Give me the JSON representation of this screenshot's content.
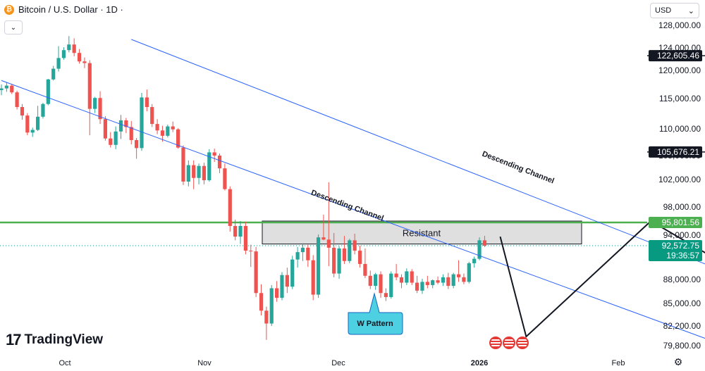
{
  "header": {
    "title": "Bitcoin / U.S. Dollar · 1D ·",
    "collapse_icon": "chevron-down-icon",
    "currency": "USD",
    "logo": "TradingView"
  },
  "colors": {
    "up": "#26a69a",
    "down": "#ef5350",
    "channel": "#2962ff",
    "support": "#4caf50",
    "zone_fill": "#d9d9d9",
    "wbadge": "#4dd0e1",
    "price_tag": "#089981"
  },
  "chart_data": {
    "type": "candlestick",
    "title": "Bitcoin / U.S. Dollar · 1D ·",
    "ylim": [
      79000,
      129000
    ],
    "y_ticks": [
      "128,000.00",
      "124,000.00",
      "120,000.00",
      "115,000.00",
      "110,000.00",
      "105,000.00",
      "102,000.00",
      "98,000.00",
      "94,000.00",
      "88,000.00",
      "85,000.00",
      "82,200.00",
      "79,800.00"
    ],
    "x_ticks": [
      "Oct",
      "Nov",
      "Dec",
      "2026",
      "Feb"
    ],
    "candles": [
      [
        116500,
        117500,
        115600,
        116800
      ],
      [
        116800,
        117800,
        116200,
        117300
      ],
      [
        117300,
        117600,
        115800,
        116100
      ],
      [
        116100,
        116400,
        113200,
        113600
      ],
      [
        113600,
        114100,
        111500,
        112200
      ],
      [
        112200,
        112600,
        108800,
        109300
      ],
      [
        109300,
        110200,
        108500,
        109800
      ],
      [
        109800,
        113800,
        109600,
        112000
      ],
      [
        112000,
        114300,
        111700,
        114100
      ],
      [
        114100,
        118500,
        113900,
        118400
      ],
      [
        118400,
        120800,
        118200,
        120300
      ],
      [
        120300,
        124300,
        119800,
        122200
      ],
      [
        122200,
        124100,
        121900,
        123600
      ],
      [
        123600,
        126100,
        123200,
        124600
      ],
      [
        124600,
        125700,
        122500,
        123100
      ],
      [
        123100,
        123800,
        121200,
        121600
      ],
      [
        121600,
        122300,
        120400,
        121300
      ],
      [
        121300,
        121800,
        108800,
        113300
      ],
      [
        113300,
        115300,
        112600,
        115100
      ],
      [
        115100,
        116300,
        110800,
        111600
      ],
      [
        111600,
        112100,
        107800,
        108200
      ],
      [
        108200,
        109400,
        106500,
        107000
      ],
      [
        107000,
        110400,
        106200,
        109500
      ],
      [
        109500,
        112300,
        108100,
        111400
      ],
      [
        111400,
        111800,
        109200,
        110300
      ],
      [
        110300,
        111300,
        107100,
        107900
      ],
      [
        107900,
        108300,
        104600,
        106400
      ],
      [
        106400,
        116000,
        105900,
        115200
      ],
      [
        115200,
        116600,
        112900,
        113600
      ],
      [
        113600,
        114100,
        110300,
        110800
      ],
      [
        110800,
        111600,
        109000,
        109700
      ],
      [
        109700,
        110500,
        107600,
        108700
      ],
      [
        108700,
        110700,
        108400,
        110400
      ],
      [
        110400,
        111200,
        109400,
        109900
      ],
      [
        109900,
        110100,
        106300,
        106500
      ],
      [
        106500,
        106900,
        101200,
        101700
      ],
      [
        101700,
        104400,
        101000,
        103800
      ],
      [
        103800,
        104400,
        100600,
        102200
      ],
      [
        102200,
        104000,
        101300,
        103700
      ],
      [
        103700,
        104100,
        101300,
        101900
      ],
      [
        101900,
        106200,
        101700,
        105600
      ],
      [
        105600,
        106300,
        104200,
        105000
      ],
      [
        105000,
        105400,
        102800,
        103400
      ],
      [
        103400,
        104000,
        100400,
        100600
      ],
      [
        100600,
        101000,
        94500,
        95300
      ],
      [
        95300,
        96200,
        93300,
        93800
      ],
      [
        93800,
        96000,
        92800,
        95300
      ],
      [
        95300,
        95900,
        91400,
        91900
      ],
      [
        91900,
        92700,
        89700,
        91800
      ],
      [
        91800,
        92400,
        85800,
        86300
      ],
      [
        86300,
        87400,
        83500,
        84100
      ],
      [
        84100,
        84600,
        80500,
        82500
      ],
      [
        82500,
        87300,
        82200,
        86900
      ],
      [
        86900,
        87800,
        85200,
        85700
      ],
      [
        85700,
        89000,
        85400,
        88600
      ],
      [
        88600,
        89600,
        86300,
        87100
      ],
      [
        87100,
        91200,
        86800,
        90700
      ],
      [
        90700,
        92400,
        89600,
        91700
      ],
      [
        91700,
        92900,
        90500,
        92300
      ],
      [
        92300,
        92700,
        89700,
        90600
      ],
      [
        90600,
        91300,
        85400,
        86100
      ],
      [
        86100,
        94100,
        85700,
        93700
      ],
      [
        93700,
        96900,
        93300,
        93400
      ],
      [
        93400,
        101600,
        89800,
        92300
      ],
      [
        92300,
        94300,
        88300,
        88800
      ],
      [
        88800,
        92500,
        88100,
        92200
      ],
      [
        92200,
        93900,
        90100,
        90500
      ],
      [
        90500,
        93500,
        90200,
        93300
      ],
      [
        93300,
        94200,
        91400,
        91900
      ],
      [
        91900,
        92600,
        89600,
        90100
      ],
      [
        90100,
        92200,
        88200,
        88500
      ],
      [
        88500,
        89200,
        86800,
        87200
      ],
      [
        87200,
        88900,
        86700,
        88700
      ],
      [
        88700,
        89100,
        85700,
        86300
      ],
      [
        86300,
        86900,
        85300,
        85800
      ],
      [
        85800,
        89100,
        85600,
        88800
      ],
      [
        88800,
        90100,
        87900,
        88300
      ],
      [
        88300,
        88700,
        86900,
        87600
      ],
      [
        87600,
        89500,
        87300,
        89100
      ],
      [
        89100,
        89400,
        87300,
        87600
      ],
      [
        87600,
        88500,
        86300,
        86600
      ],
      [
        86600,
        88100,
        86200,
        87700
      ],
      [
        87700,
        88500,
        86900,
        87300
      ],
      [
        87300,
        88000,
        86900,
        87900
      ],
      [
        87900,
        88400,
        87400,
        87600
      ],
      [
        87600,
        88700,
        87200,
        88300
      ],
      [
        88300,
        88900,
        86800,
        87200
      ],
      [
        87200,
        88900,
        86900,
        88700
      ],
      [
        88700,
        90600,
        87700,
        88300
      ],
      [
        88300,
        88800,
        87400,
        87700
      ],
      [
        87700,
        90400,
        87500,
        90200
      ],
      [
        90200,
        91100,
        89600,
        90800
      ],
      [
        90800,
        93700,
        90600,
        93300
      ],
      [
        93300,
        93900,
        92400,
        92573
      ]
    ],
    "series": [
      {
        "name": "Descending Channel",
        "points": [
          [
            25,
            125500
          ],
          [
            160,
            83700
          ]
        ]
      },
      {
        "name": "Descending Channel",
        "points": [
          [
            0,
            118200
          ],
          [
            141,
            79400
          ]
        ]
      }
    ],
    "annotations": {
      "resistance_label": "Resistant",
      "resistance_zone": [
        92800,
        96000
      ],
      "support_level": 95801.56,
      "pattern_label": "W Pattern",
      "w_path": [
        [
          96,
          93800
        ],
        [
          101,
          80900
        ],
        [
          125,
          96000
        ],
        [
          149,
          86200
        ],
        [
          162,
          100500
        ],
        [
          166,
          95900
        ],
        [
          175,
          123000
        ]
      ],
      "target_levels": [
        105676.21,
        122605.46
      ],
      "current_price": 92572.75,
      "countdown": "19:36:57"
    },
    "price_tags": [
      {
        "label": "122,605.46",
        "value": 122605.46,
        "style": "dark"
      },
      {
        "label": "105,676.21",
        "value": 105676.21,
        "style": "dark"
      },
      {
        "label": "95,801.56",
        "value": 95801.56,
        "style": "green"
      },
      {
        "label": "92,572.75",
        "value": 92572.75,
        "style": "teal",
        "sub": "19:36:57"
      }
    ]
  }
}
